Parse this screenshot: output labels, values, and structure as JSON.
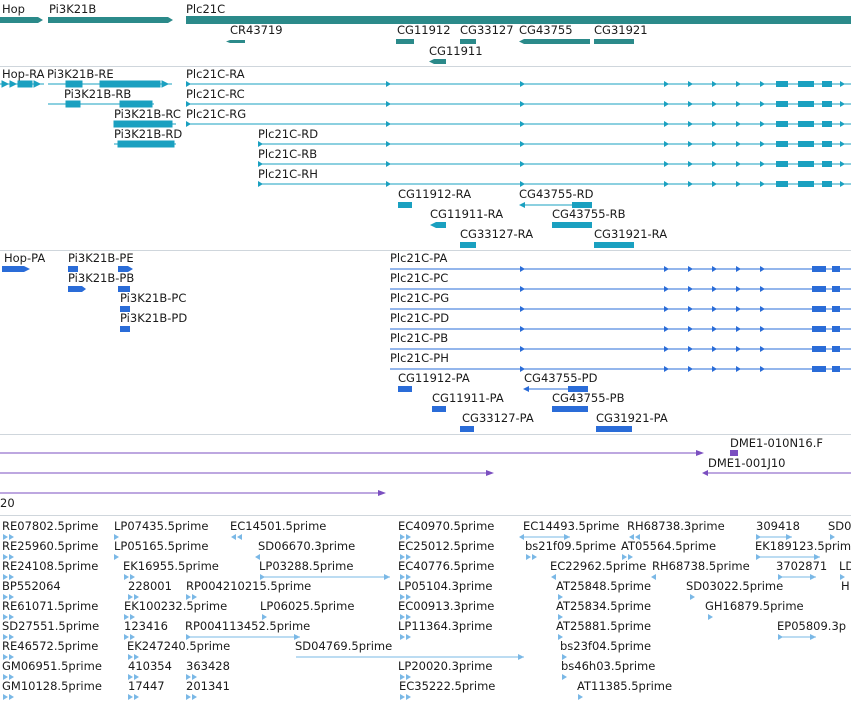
{
  "colors": {
    "gene": "#2b8a8a",
    "transcript": "#1aa0c0",
    "protein": "#2a6cd8",
    "clone": "#7b4fc0",
    "est": "#7ab8e6",
    "divider": "#cfd6dc"
  },
  "genes": [
    {
      "label": "Hop"
    },
    {
      "label": "Pi3K21B"
    },
    {
      "label": "Plc21C"
    },
    {
      "label": "CR43719"
    },
    {
      "label": "CG11912"
    },
    {
      "label": "CG33127"
    },
    {
      "label": "CG43755"
    },
    {
      "label": "CG31921"
    },
    {
      "label": "CG11911"
    }
  ],
  "transcripts": [
    {
      "label": "Hop-RA"
    },
    {
      "label": "Pi3K21B-RE"
    },
    {
      "label": "Plc21C-RA"
    },
    {
      "label": "Pi3K21B-RB"
    },
    {
      "label": "Plc21C-RC"
    },
    {
      "label": "Pi3K21B-RC"
    },
    {
      "label": "Plc21C-RG"
    },
    {
      "label": "Pi3K21B-RD"
    },
    {
      "label": "Plc21C-RD"
    },
    {
      "label": "Plc21C-RB"
    },
    {
      "label": "Plc21C-RH"
    },
    {
      "label": "CG11912-RA"
    },
    {
      "label": "CG43755-RD"
    },
    {
      "label": "CG11911-RA"
    },
    {
      "label": "CG43755-RB"
    },
    {
      "label": "CG33127-RA"
    },
    {
      "label": "CG31921-RA"
    }
  ],
  "proteins": [
    {
      "label": "Hop-PA"
    },
    {
      "label": "Pi3K21B-PE"
    },
    {
      "label": "Plc21C-PA"
    },
    {
      "label": "Pi3K21B-PB"
    },
    {
      "label": "Plc21C-PC"
    },
    {
      "label": "Pi3K21B-PC"
    },
    {
      "label": "Plc21C-PG"
    },
    {
      "label": "Pi3K21B-PD"
    },
    {
      "label": "Plc21C-PD"
    },
    {
      "label": "Plc21C-PB"
    },
    {
      "label": "Plc21C-PH"
    },
    {
      "label": "CG11912-PA"
    },
    {
      "label": "CG43755-PD"
    },
    {
      "label": "CG11911-PA"
    },
    {
      "label": "CG43755-PB"
    },
    {
      "label": "CG33127-PA"
    },
    {
      "label": "CG31921-PA"
    }
  ],
  "clones": [
    {
      "label": "DME1-010N16.F"
    },
    {
      "label": "DME1-001J10"
    },
    {
      "label": "20"
    }
  ],
  "ests": [
    {
      "label": "RE07802.5prime"
    },
    {
      "label": "LP07435.5prime"
    },
    {
      "label": "EC14501.5prime"
    },
    {
      "label": "EC40970.5prime"
    },
    {
      "label": "EC14493.5prime"
    },
    {
      "label": "RH68738.3prime"
    },
    {
      "label": "309418"
    },
    {
      "label": "SD0"
    },
    {
      "label": "RE25960.5prime"
    },
    {
      "label": "LP05165.5prime"
    },
    {
      "label": "SD06670.3prime"
    },
    {
      "label": "EC25012.5prime"
    },
    {
      "label": "bs21f09.5prime"
    },
    {
      "label": "AT05564.5prime"
    },
    {
      "label": "EK189123.5prime"
    },
    {
      "label": "RE24108.5prime"
    },
    {
      "label": "EK16955.5prime"
    },
    {
      "label": "LP03288.5prime"
    },
    {
      "label": "EC40776.5prime"
    },
    {
      "label": "EC22962.5prime"
    },
    {
      "label": "RH68738.5prime"
    },
    {
      "label": "3702871"
    },
    {
      "label": "LD"
    },
    {
      "label": "BP552064"
    },
    {
      "label": "228001"
    },
    {
      "label": "RP004210215.5prime"
    },
    {
      "label": "LP05104.3prime"
    },
    {
      "label": "AT25848.5prime"
    },
    {
      "label": "SD03022.5prime"
    },
    {
      "label": "H"
    },
    {
      "label": "RE61071.5prime"
    },
    {
      "label": "EK100232.5prime"
    },
    {
      "label": "LP06025.5prime"
    },
    {
      "label": "EC00913.3prime"
    },
    {
      "label": "AT25834.5prime"
    },
    {
      "label": "GH16879.5prime"
    },
    {
      "label": "SD27551.5prime"
    },
    {
      "label": "123416"
    },
    {
      "label": "RP004113452.5prime"
    },
    {
      "label": "LP11364.3prime"
    },
    {
      "label": "AT25881.5prime"
    },
    {
      "label": "EP05809.3p"
    },
    {
      "label": "RE46572.5prime"
    },
    {
      "label": "EK247240.5prime"
    },
    {
      "label": "SD04769.5prime"
    },
    {
      "label": "bs23f04.5prime"
    },
    {
      "label": "GM06951.5prime"
    },
    {
      "label": "410354"
    },
    {
      "label": "363428"
    },
    {
      "label": "LP20020.3prime"
    },
    {
      "label": "bs46h03.5prime"
    },
    {
      "label": "GM10128.5prime"
    },
    {
      "label": "17447"
    },
    {
      "label": "201341"
    },
    {
      "label": "EC35222.5prime"
    },
    {
      "label": "AT11385.5prime"
    }
  ]
}
